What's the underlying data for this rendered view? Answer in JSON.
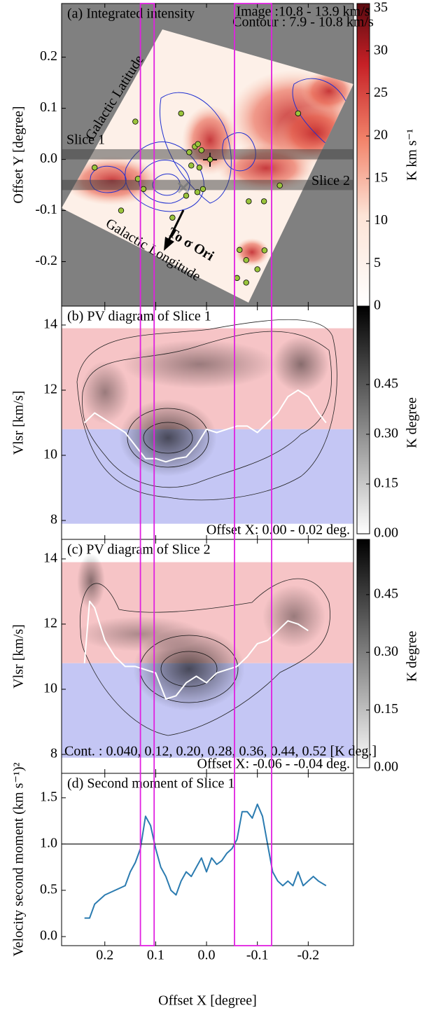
{
  "chart_data": [
    {
      "type": "image",
      "title": "(a) Integrated intensity",
      "ylabel": "Offset Y [degree]",
      "xlim": [
        0.285,
        -0.289
      ],
      "ylim": [
        -0.287,
        0.305
      ],
      "yticks": [
        0.2,
        0.1,
        {
          "value": 0,
          "label": "0.0"
        },
        -0.1,
        -0.2
      ],
      "colorbar": {
        "label": "K km s⁻¹",
        "lim": [
          0,
          35
        ],
        "ticks": [
          0,
          5,
          10,
          15,
          20,
          25,
          30,
          35
        ]
      },
      "slices": [
        {
          "label": "Slice 1",
          "range": [
            0,
            0.02
          ]
        },
        {
          "label": "Slice 2",
          "range": [
            -0.06,
            -0.04
          ]
        }
      ],
      "sources": {
        "color": "#9ac43c",
        "x": [
          0.05,
          0.14,
          0.22,
          0.135,
          0.124,
          0.168,
          0.034,
          0.023,
          0.017,
          0.01,
          0.03,
          0.014,
          -0.007,
          0.04,
          0.018,
          0.007,
          0.067,
          -0.083,
          -0.113,
          -0.144,
          -0.065,
          -0.078,
          -0.1,
          -0.114,
          -0.078,
          -0.06,
          -0.18
        ],
        "y": [
          0.09,
          0.074,
          -0.016,
          -0.038,
          -0.058,
          -0.1,
          0.014,
          0.025,
          0.03,
          0.018,
          -0.012,
          -0.016,
          0,
          -0.071,
          -0.064,
          -0.058,
          -0.114,
          -0.082,
          -0.082,
          -0.051,
          -0.177,
          -0.197,
          -0.215,
          -0.178,
          -0.241,
          -0.232,
          0.09
        ]
      },
      "annotations": [
        "Image :10.8 - 13.9 km/s",
        "Contour : 7.9 - 10.8 km/s",
        "Galactic Latitude",
        "Galactic Longitude",
        "To σ Ori"
      ]
    },
    {
      "type": "pv",
      "title": "(b) PV diagram of Slice 1",
      "ylabel": "Vlsr [km/s]",
      "xlim": [
        0.285,
        -0.289
      ],
      "ylim": [
        7.42,
        14.58
      ],
      "yticks": [
        8,
        10,
        12,
        14
      ],
      "bands": [
        {
          "range": [
            10.8,
            13.9
          ],
          "color": "#f6c4c6"
        },
        {
          "range": [
            7.9,
            10.8
          ],
          "color": "#c4c6f4"
        }
      ],
      "colorbar": {
        "label": "K degree",
        "lim": [
          0,
          0.68
        ],
        "ticks": [
          {
            "value": 0,
            "label": "0.00"
          },
          0.15,
          {
            "value": 0.3,
            "label": "0.30"
          },
          0.45
        ]
      },
      "series": [
        {
          "color": "#ffffff",
          "x": [
            0.24,
            0.22,
            0.2,
            0.18,
            0.16,
            0.14,
            0.12,
            0.1,
            0.08,
            0.06,
            0.04,
            0.02,
            0,
            -0.02,
            -0.04,
            -0.06,
            -0.08,
            -0.1,
            -0.12,
            -0.14,
            -0.16,
            -0.18,
            -0.2,
            -0.22,
            -0.235
          ],
          "values": [
            11.0,
            11.3,
            11.1,
            10.9,
            10.7,
            10.3,
            9.9,
            9.9,
            9.8,
            9.9,
            9.95,
            10.3,
            10.8,
            10.7,
            10.8,
            10.9,
            10.9,
            10.7,
            11.0,
            11.3,
            11.8,
            12.0,
            11.8,
            11.3,
            11.0
          ]
        }
      ],
      "annotations": [
        "Offset X: 0.00 - 0.02 deg."
      ]
    },
    {
      "type": "pv",
      "title": "(c) PV diagram of Slice 2",
      "ylabel": "Vlsr [km/s]",
      "xlim": [
        0.285,
        -0.289
      ],
      "ylim": [
        7.42,
        14.6
      ],
      "yticks": [
        8,
        10,
        12,
        14
      ],
      "bands": [
        {
          "range": [
            10.8,
            13.9
          ],
          "color": "#f6c4c6"
        },
        {
          "range": [
            7.9,
            10.8
          ],
          "color": "#c4c6f4"
        }
      ],
      "colorbar": {
        "label": "K degree",
        "lim": [
          0,
          0.59
        ],
        "ticks": [
          {
            "value": 0,
            "label": "0.00"
          },
          0.15,
          {
            "value": 0.3,
            "label": "0.30"
          },
          0.45
        ]
      },
      "series": [
        {
          "color": "#ffffff",
          "x": [
            0.24,
            0.23,
            0.22,
            0.2,
            0.18,
            0.16,
            0.14,
            0.12,
            0.1,
            0.08,
            0.06,
            0.04,
            0.02,
            0,
            -0.02,
            -0.04,
            -0.06,
            -0.08,
            -0.1,
            -0.12,
            -0.14,
            -0.16,
            -0.18,
            -0.2
          ],
          "values": [
            10.8,
            12.7,
            12.5,
            11.5,
            11.0,
            10.7,
            10.7,
            10.6,
            10.5,
            9.7,
            9.8,
            10.2,
            10.4,
            10.2,
            10.5,
            10.6,
            10.7,
            11.0,
            11.4,
            11.5,
            11.8,
            12.1,
            12.0,
            11.8
          ]
        }
      ],
      "annotations": [
        "Cont. : 0.040, 0.12, 0.20, 0.28, 0.36, 0.44, 0.52 [K deg.]",
        "Offset X: -0.06 - -0.04 deg."
      ]
    },
    {
      "type": "line",
      "title": "(d) Second moment of Slice 1",
      "ylabel": "Velocity second moment (km s⁻¹)²",
      "xlabel": "Offset X [degree]",
      "xlim": [
        0.285,
        -0.289
      ],
      "ylim": [
        -0.098,
        1.764
      ],
      "xticks": [
        0.2,
        0.1,
        {
          "value": 0,
          "label": "0.0"
        },
        -0.1,
        -0.2
      ],
      "yticks": [
        {
          "value": 0,
          "label": "0.0"
        },
        0.5,
        {
          "value": 1,
          "label": "1.0"
        },
        1.5
      ],
      "hline": 1.0,
      "series": [
        {
          "color": "#2b7bb0",
          "x": [
            0.24,
            0.23,
            0.22,
            0.2,
            0.18,
            0.16,
            0.15,
            0.14,
            0.13,
            0.12,
            0.11,
            0.1,
            0.09,
            0.08,
            0.07,
            0.06,
            0.05,
            0.04,
            0.03,
            0.02,
            0.01,
            0,
            -0.01,
            -0.02,
            -0.03,
            -0.04,
            -0.05,
            -0.06,
            -0.07,
            -0.08,
            -0.09,
            -0.1,
            -0.11,
            -0.12,
            -0.13,
            -0.14,
            -0.15,
            -0.16,
            -0.17,
            -0.18,
            -0.19,
            -0.2,
            -0.21,
            -0.22,
            -0.235
          ],
          "values": [
            0.2,
            0.2,
            0.35,
            0.45,
            0.5,
            0.55,
            0.7,
            0.8,
            0.95,
            1.3,
            1.2,
            0.95,
            0.75,
            0.65,
            0.5,
            0.45,
            0.6,
            0.7,
            0.65,
            0.75,
            0.85,
            0.7,
            0.85,
            0.78,
            0.82,
            0.9,
            0.95,
            1.05,
            1.35,
            1.35,
            1.28,
            1.43,
            1.3,
            1.0,
            0.7,
            0.6,
            0.55,
            0.6,
            0.55,
            0.7,
            0.55,
            0.6,
            0.65,
            0.6,
            0.55
          ]
        }
      ]
    }
  ],
  "highlights": {
    "color": "#e020e0",
    "ranges": [
      [
        0.13,
        0.103
      ],
      [
        -0.055,
        -0.128
      ]
    ]
  }
}
